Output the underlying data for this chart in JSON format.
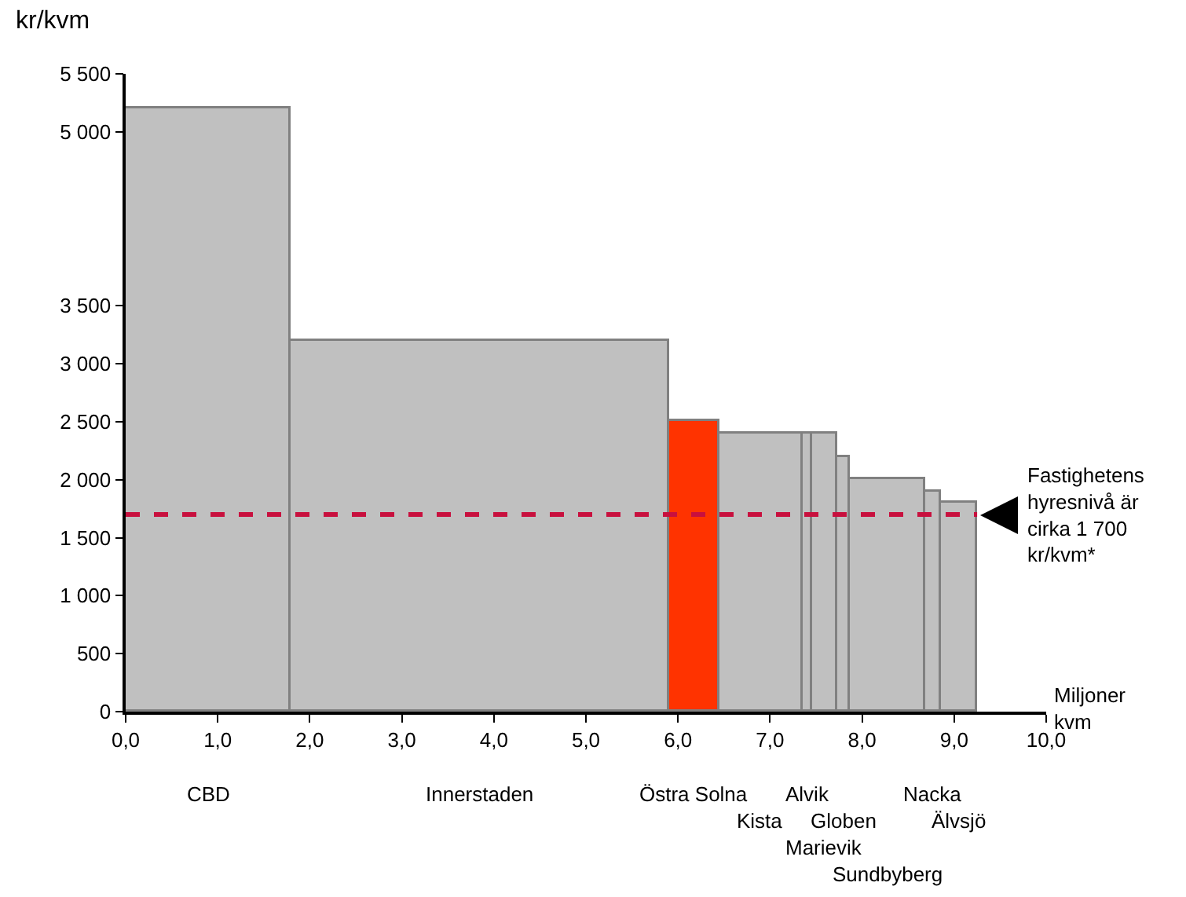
{
  "chart_data": {
    "type": "histogram",
    "ylabel": "kr/kvm",
    "xlabel": "Miljoner kvm",
    "categories": [
      "CBD",
      "Innerstaden",
      "Östra Solna",
      "Kista",
      "Alvik",
      "Marievik",
      "Globen",
      "Sundbyberg",
      "Nacka",
      "Älvsjö"
    ],
    "bins": [
      0,
      1.8,
      5.9,
      6.45,
      7.35,
      7.45,
      7.73,
      7.87,
      8.69,
      8.86,
      9.25
    ],
    "values": [
      5200,
      3200,
      2500,
      2400,
      2400,
      2400,
      2200,
      2000,
      1900,
      1800
    ],
    "colors": [
      "#c0c0c0",
      "#c0c0c0",
      "#ff3300",
      "#c0c0c0",
      "#c0c0c0",
      "#c0c0c0",
      "#c0c0c0",
      "#c0c0c0",
      "#c0c0c0",
      "#c0c0c0"
    ],
    "xlim": [
      0,
      10
    ],
    "xticks": [
      {
        "value": 0,
        "label": "0,0"
      },
      {
        "value": 1,
        "label": "1,0"
      },
      {
        "value": 2,
        "label": "2,0"
      },
      {
        "value": 3,
        "label": "3,0"
      },
      {
        "value": 4,
        "label": "4,0"
      },
      {
        "value": 5,
        "label": "5,0"
      },
      {
        "value": 6,
        "label": "6,0"
      },
      {
        "value": 7,
        "label": "7,0"
      },
      {
        "value": 8,
        "label": "8,0"
      },
      {
        "value": 9,
        "label": "9,0"
      },
      {
        "value": 10,
        "label": "10,0"
      }
    ],
    "ylim": [
      0,
      5500
    ],
    "yticks": [
      0,
      500,
      {
        "value": 1000,
        "label": "1 000"
      },
      {
        "value": 1500,
        "label": "1 500"
      },
      {
        "value": 2000,
        "label": "2 000"
      },
      {
        "value": 2500,
        "label": "2 500"
      },
      {
        "value": 3000,
        "label": "3 000"
      },
      {
        "value": 3500,
        "label": "3 500"
      },
      {
        "value": 5000,
        "label": "5 000"
      },
      {
        "value": 5500,
        "label": "5 500"
      }
    ],
    "ref_lines": [
      {
        "axis": "y",
        "value": 1700,
        "label": "Fastighetens hyresnivå är cirka 1 700 kr/kvm*",
        "color": "#c8103e",
        "line_style": "dashed"
      }
    ],
    "grid": false
  }
}
